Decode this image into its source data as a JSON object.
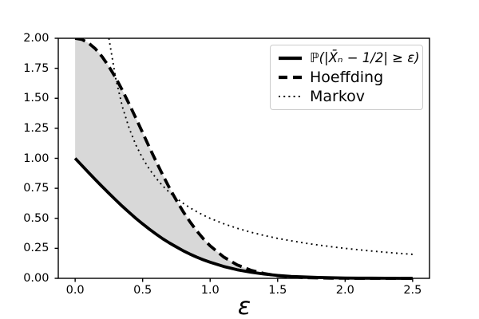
{
  "figure": {
    "background": "#ffffff"
  },
  "chart_data": {
    "type": "line",
    "title": "",
    "xlabel": "ε",
    "ylabel": "",
    "xlim": [
      -0.125,
      2.625
    ],
    "ylim": [
      0,
      2
    ],
    "grid": false,
    "legend_position": "upper right",
    "xticks": {
      "values": [
        0.0,
        0.5,
        1.0,
        1.5,
        2.0,
        2.5
      ],
      "labels": [
        "0.0",
        "0.5",
        "1.0",
        "1.5",
        "2.0",
        "2.5"
      ]
    },
    "yticks": {
      "values": [
        0.0,
        0.25,
        0.5,
        0.75,
        1.0,
        1.25,
        1.5,
        1.75,
        2.0
      ],
      "labels": [
        "0.00",
        "0.25",
        "0.50",
        "0.75",
        "1.00",
        "1.25",
        "1.50",
        "1.75",
        "2.00"
      ]
    },
    "colors": {
      "line": "#000000",
      "fill": "#d8d8d8",
      "legend_border": "#cccccc",
      "background": "#ffffff"
    },
    "fill_between": {
      "lower_series": "prob",
      "upper_series": "hoeffding",
      "color": "#d8d8d8",
      "x_range": [
        0,
        2.5
      ]
    },
    "series": [
      {
        "id": "prob",
        "name": "ℙ(|X̄ₙ − 1/2| ≥ ε)",
        "style": "solid",
        "color": "#000000",
        "linewidth": 3.8,
        "x": [
          0,
          0.05,
          0.1,
          0.15,
          0.2,
          0.25,
          0.3,
          0.35,
          0.4,
          0.45,
          0.5,
          0.55,
          0.6,
          0.65,
          0.7,
          0.75,
          0.8,
          0.85,
          0.9,
          0.95,
          1.0,
          1.1,
          1.2,
          1.3,
          1.4,
          1.5,
          1.6,
          1.7,
          1.8,
          1.9,
          2.0,
          2.1,
          2.2,
          2.3,
          2.4,
          2.5
        ],
        "y": [
          1.0,
          0.94,
          0.881,
          0.822,
          0.764,
          0.708,
          0.653,
          0.6,
          0.549,
          0.5,
          0.453,
          0.409,
          0.368,
          0.329,
          0.294,
          0.261,
          0.23,
          0.202,
          0.177,
          0.154,
          0.134,
          0.099,
          0.072,
          0.051,
          0.036,
          0.024,
          0.016,
          0.011,
          0.007,
          0.0044,
          0.0027,
          0.0016,
          0.001,
          0.0006,
          0.0003,
          0.0002
        ]
      },
      {
        "id": "hoeffding",
        "name": "Hoeffding",
        "style": "dashed",
        "color": "#000000",
        "linewidth": 3.8,
        "x": [
          0,
          0.05,
          0.1,
          0.15,
          0.2,
          0.25,
          0.3,
          0.35,
          0.4,
          0.45,
          0.5,
          0.55,
          0.6,
          0.65,
          0.7,
          0.75,
          0.8,
          0.85,
          0.9,
          0.95,
          1.0,
          1.1,
          1.2,
          1.3,
          1.4,
          1.5,
          1.6,
          1.7,
          1.8,
          1.9,
          2.0,
          2.1,
          2.2,
          2.3,
          2.4,
          2.5
        ],
        "y": [
          2.0,
          1.99,
          1.96,
          1.912,
          1.846,
          1.765,
          1.671,
          1.566,
          1.452,
          1.334,
          1.213,
          1.092,
          0.973,
          0.859,
          0.75,
          0.649,
          0.556,
          0.472,
          0.396,
          0.329,
          0.271,
          0.178,
          0.112,
          0.068,
          0.04,
          0.022,
          0.012,
          0.006,
          0.003,
          0.0015,
          0.0007,
          0.0003,
          0.0001,
          0.0001,
          0.0,
          0.0
        ]
      },
      {
        "id": "markov",
        "name": "Markov",
        "style": "dotted",
        "color": "#000000",
        "linewidth": 1.9,
        "x": [
          0.25,
          0.3,
          0.35,
          0.4,
          0.45,
          0.5,
          0.55,
          0.6,
          0.65,
          0.7,
          0.75,
          0.8,
          0.85,
          0.9,
          0.95,
          1.0,
          1.1,
          1.2,
          1.3,
          1.4,
          1.5,
          1.6,
          1.7,
          1.8,
          1.9,
          2.0,
          2.1,
          2.2,
          2.3,
          2.4,
          2.5
        ],
        "y": [
          2.0,
          1.667,
          1.429,
          1.25,
          1.111,
          1.0,
          0.909,
          0.833,
          0.769,
          0.714,
          0.667,
          0.625,
          0.588,
          0.556,
          0.526,
          0.5,
          0.455,
          0.417,
          0.385,
          0.357,
          0.333,
          0.313,
          0.294,
          0.278,
          0.263,
          0.25,
          0.238,
          0.227,
          0.217,
          0.208,
          0.2
        ]
      }
    ]
  }
}
